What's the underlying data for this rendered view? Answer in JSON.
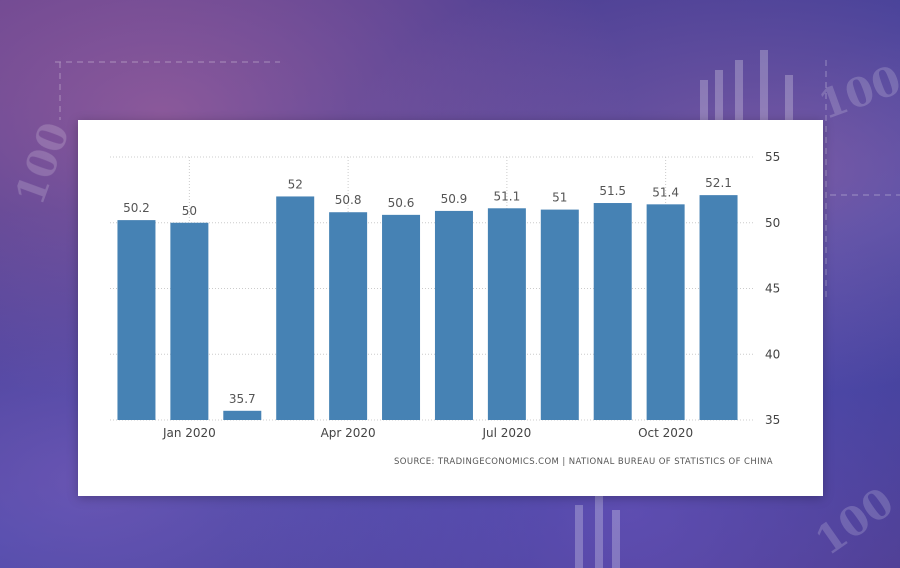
{
  "background": {
    "palette": [
      "#5a3f8f",
      "#3d3f9a",
      "#3a46a8",
      "#4a3c8e"
    ]
  },
  "source": "SOURCE: TRADINGECONOMICS.COM | NATIONAL BUREAU OF STATISTICS OF CHINA",
  "chart_data": {
    "type": "bar",
    "title": "",
    "xlabel": "",
    "ylabel": "",
    "categories": [
      "2019-12",
      "2020-01",
      "2020-02",
      "2020-03",
      "2020-04",
      "2020-05",
      "2020-06",
      "2020-07",
      "2020-08",
      "2020-09",
      "2020-10",
      "2020-11"
    ],
    "values": [
      50.2,
      50,
      35.7,
      52,
      50.8,
      50.6,
      50.9,
      51.1,
      51,
      51.5,
      51.4,
      52.1
    ],
    "data_labels": [
      "50.2",
      "50",
      "35.7",
      "52",
      "50.8",
      "50.6",
      "50.9",
      "51.1",
      "51",
      "51.5",
      "51.4",
      "52.1"
    ],
    "x_ticks": [
      {
        "label": "Jan 2020",
        "index": 1
      },
      {
        "label": "Apr 2020",
        "index": 4
      },
      {
        "label": "Jul 2020",
        "index": 7
      },
      {
        "label": "Oct 2020",
        "index": 10
      }
    ],
    "y_ticks": [
      35,
      40,
      45,
      50,
      55
    ],
    "ylim": [
      35,
      55
    ],
    "y_axis_side": "right",
    "grid": true,
    "bar_color": "#4682b4",
    "grid_color": "#cccccc"
  }
}
